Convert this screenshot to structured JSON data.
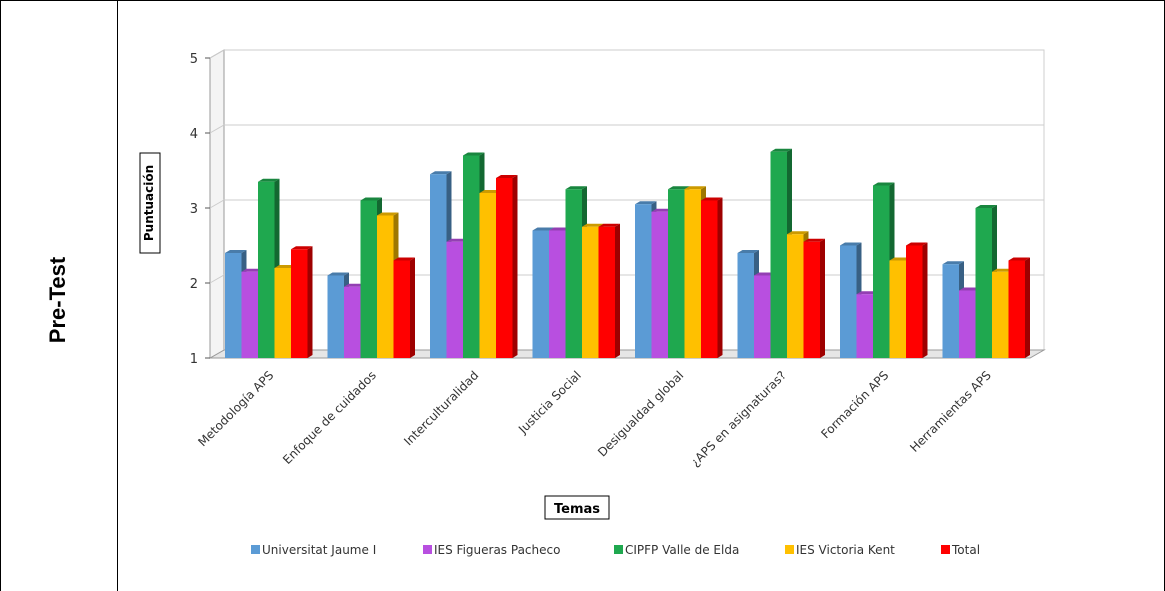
{
  "row_label": "Pre-Test",
  "chart_data": {
    "type": "bar",
    "title": "",
    "xlabel": "Temas",
    "ylabel": "Puntuación",
    "ylim": [
      1,
      5
    ],
    "yticks": [
      1,
      2,
      3,
      4,
      5
    ],
    "grid": true,
    "legend_position": "bottom",
    "categories": [
      "Metodología APS",
      "Enfoque de cuidados",
      "Interculturalidad",
      "Justicia Social",
      "Desigualdad global",
      "¿APS en asignaturas?",
      "Formación APS",
      "Herramientas APS"
    ],
    "series": [
      {
        "name": "Universitat Jaume I",
        "color": "#5b9bd5",
        "values": [
          2.4,
          2.1,
          3.45,
          2.7,
          3.05,
          2.4,
          2.5,
          2.25
        ]
      },
      {
        "name": "IES Figueras Pacheco",
        "color": "#b84fe0",
        "values": [
          2.15,
          1.95,
          2.55,
          2.7,
          2.95,
          2.1,
          1.85,
          1.9
        ]
      },
      {
        "name": "CIPFP Valle de Elda",
        "color": "#1fa84f",
        "values": [
          3.35,
          3.1,
          3.7,
          3.25,
          3.25,
          3.75,
          3.3,
          3.0
        ]
      },
      {
        "name": "IES Victoria Kent",
        "color": "#ffc000",
        "values": [
          2.2,
          2.9,
          3.2,
          2.75,
          3.25,
          2.65,
          2.3,
          2.15
        ]
      },
      {
        "name": "Total",
        "color": "#ff0000",
        "values": [
          2.45,
          2.3,
          3.4,
          2.75,
          3.1,
          2.55,
          2.5,
          2.3
        ]
      }
    ]
  }
}
